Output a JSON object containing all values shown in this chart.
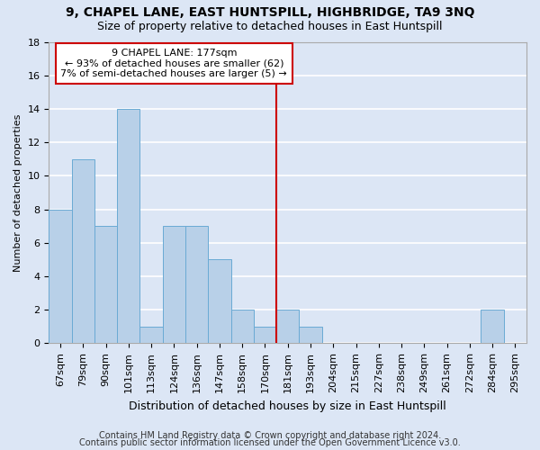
{
  "title1": "9, CHAPEL LANE, EAST HUNTSPILL, HIGHBRIDGE, TA9 3NQ",
  "title2": "Size of property relative to detached houses in East Huntspill",
  "xlabel": "Distribution of detached houses by size in East Huntspill",
  "ylabel": "Number of detached properties",
  "categories": [
    "67sqm",
    "79sqm",
    "90sqm",
    "101sqm",
    "113sqm",
    "124sqm",
    "136sqm",
    "147sqm",
    "158sqm",
    "170sqm",
    "181sqm",
    "193sqm",
    "204sqm",
    "215sqm",
    "227sqm",
    "238sqm",
    "249sqm",
    "261sqm",
    "272sqm",
    "284sqm",
    "295sqm"
  ],
  "values": [
    8,
    11,
    7,
    14,
    1,
    7,
    7,
    5,
    2,
    1,
    2,
    1,
    0,
    0,
    0,
    0,
    0,
    0,
    0,
    2,
    0
  ],
  "bar_color": "#b8d0e8",
  "bar_edge_color": "#6aaad4",
  "fig_background_color": "#dce6f5",
  "axes_background_color": "#dce6f5",
  "grid_color": "#ffffff",
  "vline_x": 9.5,
  "vline_color": "#cc0000",
  "annotation_text": "9 CHAPEL LANE: 177sqm\n← 93% of detached houses are smaller (62)\n7% of semi-detached houses are larger (5) →",
  "annotation_box_facecolor": "#ffffff",
  "annotation_box_edgecolor": "#cc0000",
  "footnote1": "Contains HM Land Registry data © Crown copyright and database right 2024.",
  "footnote2": "Contains public sector information licensed under the Open Government Licence v3.0.",
  "ylim": [
    0,
    18
  ],
  "yticks": [
    0,
    2,
    4,
    6,
    8,
    10,
    12,
    14,
    16,
    18
  ],
  "title1_fontsize": 10,
  "title2_fontsize": 9,
  "xlabel_fontsize": 9,
  "ylabel_fontsize": 8,
  "tick_fontsize": 8,
  "annot_fontsize": 8,
  "footnote_fontsize": 7
}
